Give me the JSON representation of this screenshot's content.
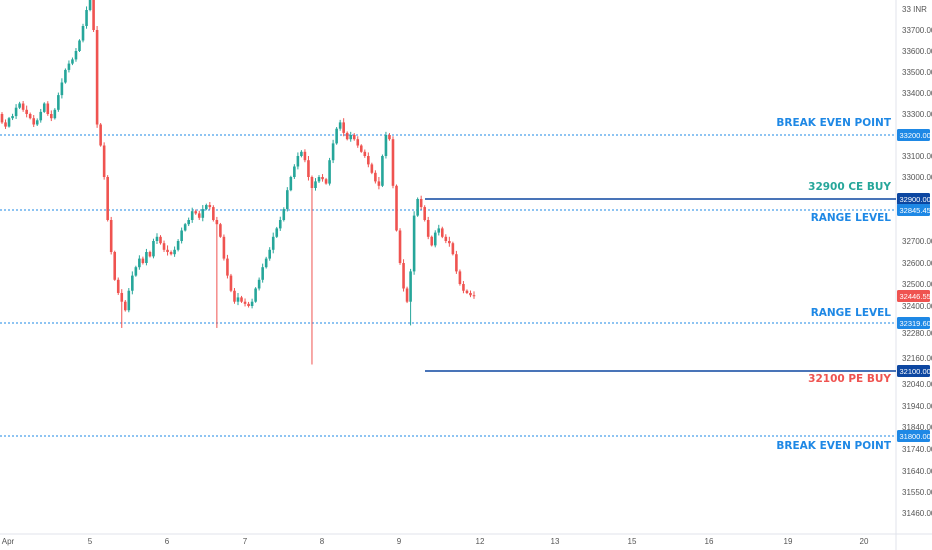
{
  "chart_data": {
    "type": "candlestick",
    "currency_label": "33 INR",
    "y_range": [
      31380,
      33900
    ],
    "y_ticks": [
      "33700.00",
      "33600.00",
      "33500.00",
      "33400.00",
      "33300.00",
      "33100.00",
      "33000.00",
      "32700.00",
      "32600.00",
      "32500.00",
      "32400.00",
      "32280.00",
      "32160.00",
      "32040.00",
      "31940.00",
      "31840.00",
      "31740.00",
      "31640.00",
      "31550.00",
      "31460.00"
    ],
    "y_tick_values": [
      33700,
      33600,
      33500,
      33400,
      33300,
      33100,
      33000,
      32700,
      32600,
      32500,
      32400,
      32280,
      32160,
      32040,
      31940,
      31840,
      31740,
      31640,
      31550,
      31460
    ],
    "x_labels": [
      "Apr",
      "5",
      "6",
      "7",
      "8",
      "9",
      "12",
      "13",
      "15",
      "16",
      "19",
      "20"
    ],
    "up_color": "#26a69a",
    "down_color": "#ef5350",
    "price_lines": [
      {
        "label": "BREAK EVEN POINT",
        "value": 33200,
        "badge": "33200.00",
        "style": "dotted",
        "color": "#1e88e5",
        "label_color": "#1e88e5",
        "span": "full"
      },
      {
        "label": "32900 CE BUY",
        "value": 32900,
        "badge": "32900.00",
        "style": "solid",
        "color": "#0d47a1",
        "label_color": "#26a69a",
        "span": "partial"
      },
      {
        "label": "RANGE LEVEL",
        "value": 32845.45,
        "badge": "32845.45",
        "style": "dotted",
        "color": "#1e88e5",
        "label_color": "#1e88e5",
        "span": "full"
      },
      {
        "label": "RANGE LEVEL",
        "value": 32319.6,
        "badge": "32319.60",
        "style": "dotted",
        "color": "#1e88e5",
        "label_color": "#1e88e5",
        "span": "full"
      },
      {
        "label": "32100 PE BUY",
        "value": 32100,
        "badge": "32100.00",
        "style": "solid",
        "color": "#0d47a1",
        "label_color": "#ef5350",
        "span": "partial"
      },
      {
        "label": "BREAK EVEN POINT",
        "value": 31800,
        "badge": "31800.00",
        "style": "dotted",
        "color": "#1e88e5",
        "label_color": "#1e88e5",
        "span": "full"
      }
    ],
    "last_price": {
      "value": 32446.55,
      "badge": "32446.55",
      "color": "#ef5350"
    },
    "closes": [
      33260,
      33240,
      33280,
      33290,
      33330,
      33350,
      33320,
      33300,
      33280,
      33250,
      33270,
      33310,
      33350,
      33300,
      33280,
      33320,
      33390,
      33450,
      33510,
      33540,
      33560,
      33600,
      33650,
      33720,
      33800,
      33900,
      33700,
      33250,
      33150,
      33000,
      32800,
      32650,
      32520,
      32460,
      32420,
      32380,
      32470,
      32540,
      32580,
      32620,
      32600,
      32650,
      32630,
      32700,
      32720,
      32690,
      32660,
      32650,
      32640,
      32660,
      32700,
      32750,
      32780,
      32800,
      32840,
      32830,
      32810,
      32850,
      32870,
      32860,
      32800,
      32780,
      32720,
      32620,
      32540,
      32470,
      32420,
      32440,
      32420,
      32410,
      32400,
      32420,
      32480,
      32520,
      32580,
      32620,
      32660,
      32720,
      32760,
      32800,
      32850,
      32940,
      33000,
      33050,
      33100,
      33120,
      33080,
      33000,
      32950,
      32980,
      33000,
      32990,
      32970,
      33080,
      33160,
      33230,
      33260,
      33210,
      33180,
      33200,
      33180,
      33150,
      33120,
      33100,
      33060,
      33020,
      32980,
      32960,
      33100,
      33200,
      33180,
      32960,
      32750,
      32600,
      32480,
      32420,
      32560,
      32820,
      32900,
      32860,
      32800,
      32720,
      32680,
      32740,
      32760,
      32720,
      32700,
      32690,
      32640,
      32560,
      32500,
      32470,
      32460,
      32450,
      32446.55
    ]
  }
}
